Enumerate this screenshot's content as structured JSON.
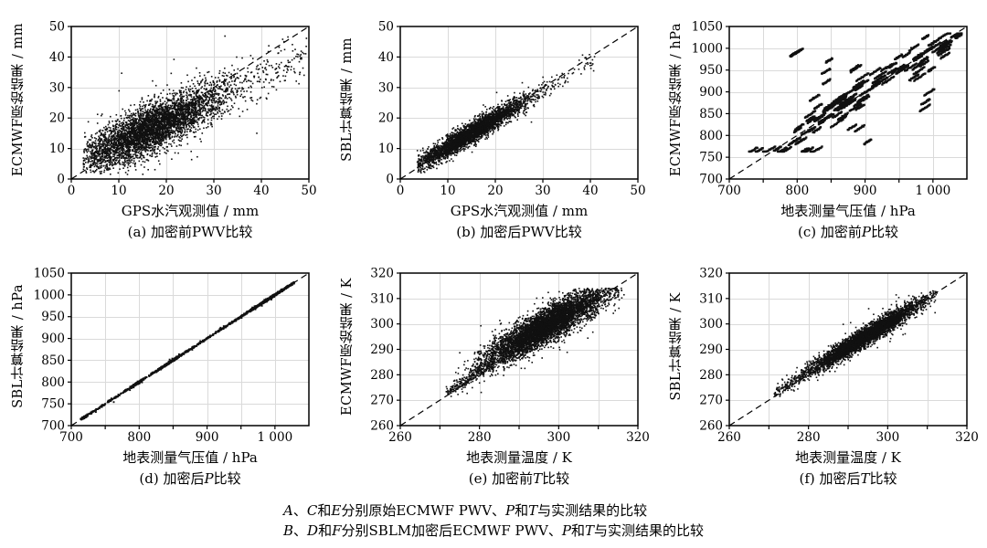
{
  "page": {
    "background": "#ffffff",
    "plot_bg": "#ffffff",
    "ink": "#000000",
    "point_color": "#111111",
    "grid_color": "#dadada"
  },
  "footnote": {
    "lines": [
      [
        {
          "t": "A",
          "i": true
        },
        {
          "t": "、"
        },
        {
          "t": "C",
          "i": true
        },
        {
          "t": "和"
        },
        {
          "t": "E",
          "i": true
        },
        {
          "t": "分别原始ECMWF PWV、"
        },
        {
          "t": "P",
          "i": true
        },
        {
          "t": "和"
        },
        {
          "t": "T",
          "i": true
        },
        {
          "t": "与实测结果的比较"
        }
      ],
      [
        {
          "t": "B",
          "i": true
        },
        {
          "t": "、"
        },
        {
          "t": "D",
          "i": true
        },
        {
          "t": "和"
        },
        {
          "t": "F",
          "i": true
        },
        {
          "t": "分别SBLM加密后ECMWF PWV、"
        },
        {
          "t": "P",
          "i": true
        },
        {
          "t": "和"
        },
        {
          "t": "T",
          "i": true
        },
        {
          "t": "与实测结果的比较"
        }
      ]
    ]
  },
  "chart_data": [
    {
      "id": "a",
      "type": "scatter",
      "xlabel": "GPS水汽观测值 / mm",
      "ylabel": "ECMWF原始结果 / mm",
      "caption": [
        {
          "t": "(a) 加密前PWV比较"
        }
      ],
      "identity_line": true,
      "axis": {
        "xmin": 0,
        "xmax": 50,
        "ymin": 0,
        "ymax": 50,
        "xgrid": [
          10,
          20,
          30,
          40
        ],
        "ygrid": [
          10,
          20,
          30,
          40
        ],
        "xticks": [
          {
            "v": 0,
            "t": "0"
          },
          {
            "v": 10,
            "t": "10"
          },
          {
            "v": 20,
            "t": "20"
          },
          {
            "v": 30,
            "t": "30"
          },
          {
            "v": 40,
            "t": "40"
          },
          {
            "v": 50,
            "t": "50"
          }
        ],
        "yticks": [
          {
            "v": 0,
            "t": "0"
          },
          {
            "v": 10,
            "t": "10"
          },
          {
            "v": 20,
            "t": "20"
          },
          {
            "v": 30,
            "t": "30"
          },
          {
            "v": 40,
            "t": "40"
          },
          {
            "v": 50,
            "t": "50"
          }
        ]
      },
      "points": {
        "kind": "cloud",
        "seed": 101,
        "n": 4300,
        "x_mean": 16.5,
        "x_sd": 7.5,
        "x_clip": [
          2.5,
          49.5
        ],
        "slope": 0.72,
        "intercept": 4.5,
        "y_sd": 3.8,
        "y_clip": [
          1.5,
          48
        ],
        "outlier_frac": 0.025,
        "outlier_sd": 8,
        "extra_n": 280,
        "extra_range": [
          24,
          49.5
        ],
        "dot": 1.6
      }
    },
    {
      "id": "b",
      "type": "scatter",
      "xlabel": "GPS水汽观测值 / mm",
      "ylabel": "SBL计算结果 / mm",
      "caption": [
        {
          "t": "(b) 加密后PWV比较"
        }
      ],
      "identity_line": true,
      "axis": {
        "xmin": 0,
        "xmax": 50,
        "ymin": 0,
        "ymax": 50,
        "xgrid": [
          10,
          20,
          30,
          40
        ],
        "ygrid": [
          10,
          20,
          30,
          40
        ],
        "xticks": [
          {
            "v": 0,
            "t": "0"
          },
          {
            "v": 10,
            "t": "10"
          },
          {
            "v": 20,
            "t": "20"
          },
          {
            "v": 30,
            "t": "30"
          },
          {
            "v": 40,
            "t": "40"
          },
          {
            "v": 50,
            "t": "50"
          }
        ],
        "yticks": [
          {
            "v": 0,
            "t": "0"
          },
          {
            "v": 10,
            "t": "10"
          },
          {
            "v": 20,
            "t": "20"
          },
          {
            "v": 30,
            "t": "30"
          },
          {
            "v": 40,
            "t": "40"
          },
          {
            "v": 50,
            "t": "50"
          }
        ]
      },
      "points": {
        "kind": "cloud",
        "seed": 102,
        "n": 3300,
        "x_mean": 15,
        "x_sd": 6,
        "x_clip": [
          3.5,
          41.5
        ],
        "slope": 0.92,
        "intercept": 1.3,
        "y_sd": 1.7,
        "y_clip": [
          2,
          41
        ],
        "outlier_frac": 0.02,
        "outlier_sd": 3.5,
        "extra_n": 90,
        "extra_range": [
          25,
          41
        ],
        "dot": 1.6
      }
    },
    {
      "id": "c",
      "type": "scatter",
      "xlabel": "地表测量气压值 / hPa",
      "ylabel": "ECMWF原始结果 / hPa",
      "caption": [
        {
          "t": "(c) 加密前"
        },
        {
          "t": "P",
          "i": true
        },
        {
          "t": "比较"
        }
      ],
      "identity_line": true,
      "axis": {
        "xmin": 700,
        "xmax": 1050,
        "ymin": 700,
        "ymax": 1050,
        "xgrid": [
          750,
          800,
          850,
          900,
          950,
          1000
        ],
        "ygrid": [
          750,
          800,
          850,
          900,
          950,
          1000
        ],
        "xticks": [
          {
            "v": 700,
            "t": "700"
          },
          {
            "v": 800,
            "t": "800"
          },
          {
            "v": 900,
            "t": "900"
          },
          {
            "v": 1000,
            "t": "1 000"
          }
        ],
        "yticks": [
          {
            "v": 700,
            "t": "700"
          },
          {
            "v": 750,
            "t": "750"
          },
          {
            "v": 800,
            "t": "800"
          },
          {
            "v": 850,
            "t": "850"
          },
          {
            "v": 900,
            "t": "900"
          },
          {
            "v": 950,
            "t": "950"
          },
          {
            "v": 1000,
            "t": "1000"
          },
          {
            "v": 1050,
            "t": "1050"
          }
        ]
      },
      "points": {
        "kind": "streaks",
        "seed": 103,
        "n_streaks": 128,
        "pts": 15,
        "len": [
          4.5,
          9
        ],
        "jitter": 0.8,
        "near_frac": 0.55,
        "dy_near_sd": 17,
        "dy_far_sd": 62,
        "dy_max": 125,
        "x_mix": [
          {
            "w": 0.5,
            "type": "n",
            "m": 862,
            "sd": 48
          },
          {
            "w": 0.3,
            "type": "n",
            "m": 990,
            "sd": 26
          },
          {
            "w": 0.2,
            "type": "u",
            "a": 716,
            "b": 1030
          }
        ],
        "x_clip": [
          712,
          1042
        ],
        "y_clip": [
          763,
          1034
        ],
        "blob": {
          "x": 797,
          "y": 988,
          "k": 5,
          "spread": 4
        },
        "dot": 2.3
      }
    },
    {
      "id": "d",
      "type": "scatter",
      "xlabel": "地表测量气压值 / hPa",
      "ylabel": "SBL计算结果 / hPa",
      "caption": [
        {
          "t": "(d) 加密后"
        },
        {
          "t": "P",
          "i": true
        },
        {
          "t": "比较"
        }
      ],
      "identity_line": true,
      "axis": {
        "xmin": 700,
        "xmax": 1050,
        "ymin": 700,
        "ymax": 1050,
        "xgrid": [
          750,
          800,
          850,
          900,
          950,
          1000
        ],
        "ygrid": [
          750,
          800,
          850,
          900,
          950,
          1000
        ],
        "xticks": [
          {
            "v": 700,
            "t": "700"
          },
          {
            "v": 800,
            "t": "800"
          },
          {
            "v": 900,
            "t": "900"
          },
          {
            "v": 1000,
            "t": "1 000"
          }
        ],
        "yticks": [
          {
            "v": 700,
            "t": "700"
          },
          {
            "v": 750,
            "t": "750"
          },
          {
            "v": 800,
            "t": "800"
          },
          {
            "v": 850,
            "t": "850"
          },
          {
            "v": 900,
            "t": "900"
          },
          {
            "v": 950,
            "t": "950"
          },
          {
            "v": 1000,
            "t": "1000"
          },
          {
            "v": 1050,
            "t": "1050"
          }
        ]
      },
      "points": {
        "kind": "line",
        "seed": 104,
        "n": 1800,
        "mix": [
          {
            "w": 0.36,
            "type": "n",
            "m": 995,
            "sd": 16
          },
          {
            "w": 0.16,
            "type": "n",
            "m": 845,
            "sd": 10
          },
          {
            "w": 0.12,
            "type": "n",
            "m": 797,
            "sd": 5
          },
          {
            "w": 0.05,
            "type": "n",
            "m": 720,
            "sd": 2.5
          },
          {
            "w": 0.31,
            "type": "u",
            "a": 726,
            "b": 1008
          }
        ],
        "x_clip": [
          712,
          1028
        ],
        "y_sd": 1.1,
        "out_frac": 0.03,
        "out_sd": 3,
        "dot": 1.9
      }
    },
    {
      "id": "e",
      "type": "scatter",
      "xlabel": "地表测量温度 / K",
      "ylabel": "ECMWF原始结果 / K",
      "caption": [
        {
          "t": "(e) 加密前"
        },
        {
          "t": "T",
          "i": true
        },
        {
          "t": "比较"
        }
      ],
      "identity_line": true,
      "axis": {
        "xmin": 260,
        "xmax": 320,
        "ymin": 260,
        "ymax": 320,
        "xgrid": [
          270,
          280,
          290,
          300,
          310
        ],
        "ygrid": [
          270,
          280,
          290,
          300,
          310
        ],
        "xticks": [
          {
            "v": 260,
            "t": "260"
          },
          {
            "v": 280,
            "t": "280"
          },
          {
            "v": 300,
            "t": "300"
          },
          {
            "v": 320,
            "t": "320"
          }
        ],
        "yticks": [
          {
            "v": 260,
            "t": "260"
          },
          {
            "v": 270,
            "t": "270"
          },
          {
            "v": 280,
            "t": "280"
          },
          {
            "v": 290,
            "t": "290"
          },
          {
            "v": 300,
            "t": "300"
          },
          {
            "v": 310,
            "t": "310"
          },
          {
            "v": 320,
            "t": "320"
          }
        ]
      },
      "points": {
        "kind": "cloud",
        "seed": 105,
        "n": 5300,
        "x_mean": 296.5,
        "x_sd": 7.5,
        "x_clip": [
          272,
          316.5
        ],
        "slope": 0.88,
        "intercept": 38,
        "y_sd": 3.3,
        "y_clip": [
          271.5,
          314
        ],
        "outlier_frac": 0.035,
        "outlier_sd": 7,
        "tail_n": 260,
        "tail_range": [
          271.5,
          284
        ],
        "tail_off": 1.2,
        "tail_sd": 1.2,
        "dot": 1.6
      }
    },
    {
      "id": "f",
      "type": "scatter",
      "xlabel": "地表测量温度 / K",
      "ylabel": "SBL计算结果 / K",
      "caption": [
        {
          "t": "(f) 加密后"
        },
        {
          "t": "T",
          "i": true
        },
        {
          "t": "比较"
        }
      ],
      "identity_line": true,
      "axis": {
        "xmin": 260,
        "xmax": 320,
        "ymin": 260,
        "ymax": 320,
        "xgrid": [
          270,
          280,
          290,
          300,
          310
        ],
        "ygrid": [
          270,
          280,
          290,
          300,
          310
        ],
        "xticks": [
          {
            "v": 260,
            "t": "260"
          },
          {
            "v": 280,
            "t": "280"
          },
          {
            "v": 300,
            "t": "300"
          },
          {
            "v": 320,
            "t": "320"
          }
        ],
        "yticks": [
          {
            "v": 260,
            "t": "260"
          },
          {
            "v": 270,
            "t": "270"
          },
          {
            "v": 280,
            "t": "280"
          },
          {
            "v": 290,
            "t": "290"
          },
          {
            "v": 300,
            "t": "300"
          },
          {
            "v": 310,
            "t": "310"
          },
          {
            "v": 320,
            "t": "320"
          }
        ]
      },
      "points": {
        "kind": "cloud",
        "seed": 106,
        "n": 4300,
        "x_mean": 294.5,
        "x_sd": 7,
        "x_clip": [
          271,
          312.5
        ],
        "slope": 0.95,
        "intercept": 15.3,
        "y_sd": 1.8,
        "y_clip": [
          271.5,
          313
        ],
        "outlier_frac": 0.02,
        "outlier_sd": 4,
        "tail_n": 120,
        "tail_range": [
          271.5,
          281
        ],
        "tail_off": 1.0,
        "tail_sd": 1.1,
        "dot": 1.6
      }
    }
  ]
}
